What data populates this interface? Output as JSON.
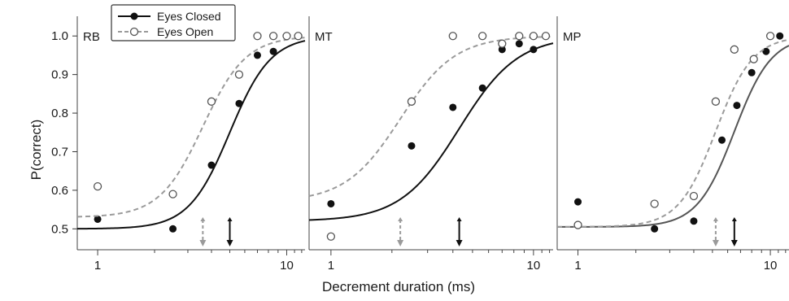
{
  "chart_data": {
    "type": "scatter",
    "xlabel": "Decrement duration (ms)",
    "ylabel": "P(correct)",
    "x_scale": "log",
    "xlim": [
      0.78,
      12.5
    ],
    "ylim": [
      0.45,
      1.03
    ],
    "x_ticks": [
      1,
      10
    ],
    "x_tick_labels": [
      "1",
      "10"
    ],
    "y_ticks": [
      0.5,
      0.6,
      0.7,
      0.8,
      0.9,
      1.0
    ],
    "y_tick_labels": [
      "0.5",
      "0.6",
      "0.7",
      "0.8",
      "0.9",
      "1.0"
    ],
    "grid": false,
    "legend": {
      "placement": "top-left",
      "entries": [
        {
          "label": "Eyes Closed",
          "color": "#111111",
          "marker": "filled-circle",
          "line": "solid"
        },
        {
          "label": "Eyes Open",
          "color": "#999999",
          "marker": "open-circle",
          "line": "dashed"
        }
      ]
    },
    "panels": [
      {
        "label": "RB",
        "series": [
          {
            "name": "Eyes Closed",
            "points": [
              [
                1.0,
                0.525
              ],
              [
                2.5,
                0.5
              ],
              [
                4.0,
                0.665
              ],
              [
                5.6,
                0.825
              ],
              [
                7.0,
                0.95
              ],
              [
                8.5,
                0.96
              ]
            ],
            "fit": {
              "threshold": 5.0,
              "slope": 4.0,
              "lower": 0.5,
              "upper": 1.0
            },
            "arrow_x": 5.0
          },
          {
            "name": "Eyes Open",
            "points": [
              [
                1.0,
                0.61
              ],
              [
                2.5,
                0.59
              ],
              [
                4.0,
                0.83
              ],
              [
                5.6,
                0.9
              ],
              [
                7.0,
                1.0
              ],
              [
                8.5,
                1.0
              ],
              [
                10.0,
                1.0
              ],
              [
                11.5,
                1.0
              ]
            ],
            "fit": {
              "threshold": 3.6,
              "slope": 3.8,
              "lower": 0.53,
              "upper": 1.0
            },
            "arrow_x": 3.6
          }
        ]
      },
      {
        "label": "MT",
        "series": [
          {
            "name": "Eyes Closed",
            "points": [
              [
                1.0,
                0.565
              ],
              [
                2.5,
                0.715
              ],
              [
                4.0,
                0.815
              ],
              [
                5.6,
                0.865
              ],
              [
                7.0,
                0.965
              ],
              [
                8.5,
                0.98
              ],
              [
                10.0,
                0.965
              ]
            ],
            "fit": {
              "threshold": 4.3,
              "slope": 3.0,
              "lower": 0.52,
              "upper": 1.0
            },
            "arrow_x": 4.3
          },
          {
            "name": "Eyes Open",
            "points": [
              [
                1.0,
                0.48
              ],
              [
                2.5,
                0.83
              ],
              [
                4.0,
                1.0
              ],
              [
                5.6,
                1.0
              ],
              [
                7.0,
                0.98
              ],
              [
                8.5,
                1.0
              ],
              [
                10.0,
                1.0
              ],
              [
                11.5,
                1.0
              ]
            ],
            "fit": {
              "threshold": 2.2,
              "slope": 3.2,
              "lower": 0.57,
              "upper": 1.0
            },
            "arrow_x": 2.2
          }
        ]
      },
      {
        "label": "MP",
        "series": [
          {
            "name": "Eyes Closed",
            "points": [
              [
                1.0,
                0.57
              ],
              [
                2.5,
                0.5
              ],
              [
                4.0,
                0.52
              ],
              [
                5.6,
                0.73
              ],
              [
                6.7,
                0.82
              ],
              [
                8.0,
                0.905
              ],
              [
                9.5,
                0.96
              ],
              [
                11.2,
                1.0
              ]
            ],
            "fit": {
              "threshold": 6.5,
              "slope": 4.5,
              "lower": 0.505,
              "upper": 1.0
            },
            "arrow_x": 6.5
          },
          {
            "name": "Eyes Open",
            "points": [
              [
                1.0,
                0.51
              ],
              [
                2.5,
                0.565
              ],
              [
                4.0,
                0.585
              ],
              [
                5.2,
                0.83
              ],
              [
                6.5,
                0.965
              ],
              [
                8.2,
                0.94
              ],
              [
                10.0,
                1.0
              ]
            ],
            "fit": {
              "threshold": 5.2,
              "slope": 4.5,
              "lower": 0.505,
              "upper": 1.0
            },
            "arrow_x": 5.2
          }
        ]
      }
    ]
  }
}
